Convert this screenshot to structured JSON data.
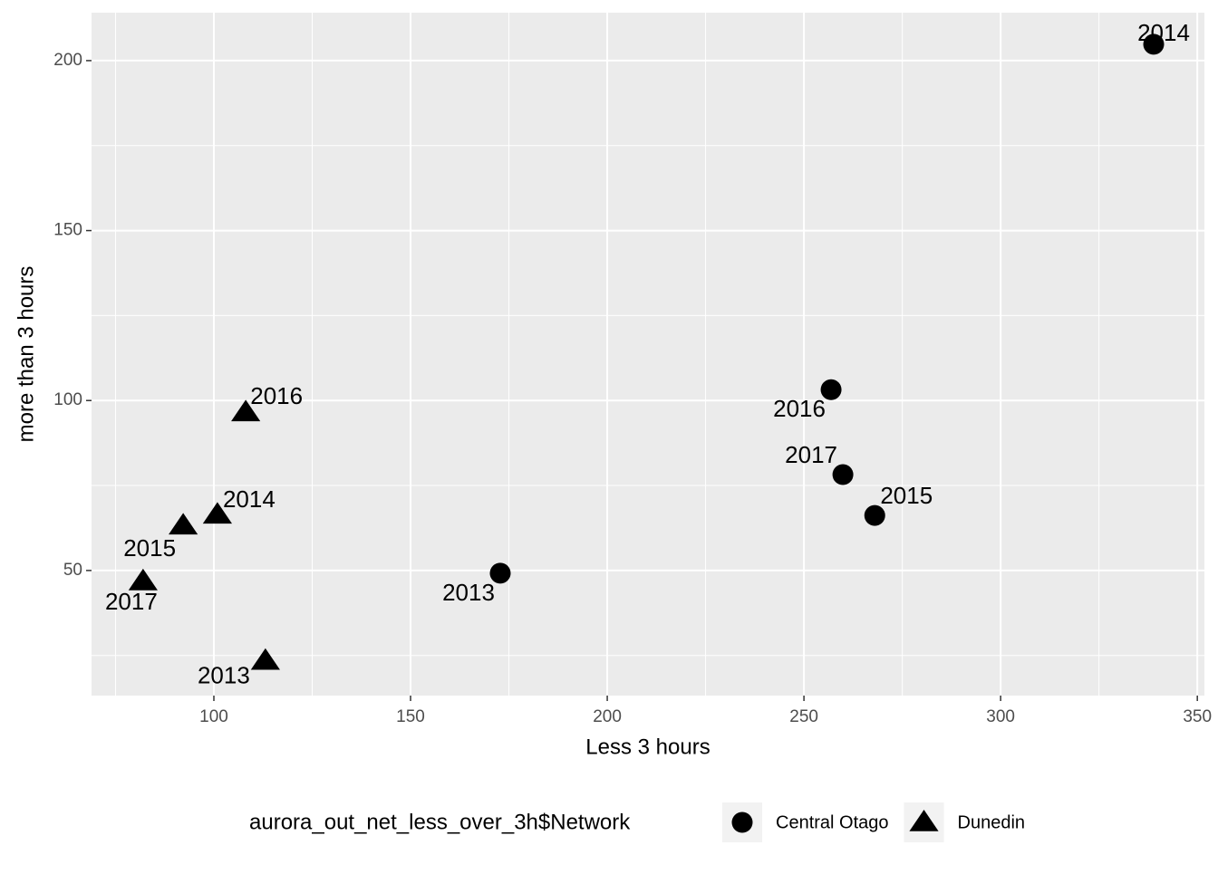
{
  "chart_data": {
    "type": "scatter",
    "x_label": "Less 3 hours",
    "y_label": "more than 3 hours",
    "legend_title": "aurora_out_net_less_over_3h$Network",
    "legend_position": "bottom",
    "grid": true,
    "xlim": [
      68.9,
      351.8
    ],
    "xticks": [
      100,
      150,
      200,
      250,
      300,
      350
    ],
    "ylim": [
      13.2,
      214.1
    ],
    "yticks": [
      50,
      100,
      150,
      200
    ],
    "series": [
      {
        "name": "Central Otago",
        "color": "#000000",
        "shape": "circle",
        "x": [
          338.9,
          256.9,
          259.9,
          268.0,
          172.8
        ],
        "values": [
          204.8,
          103.2,
          78.2,
          66.2,
          49.2
        ],
        "labels": [
          "2014",
          "2016",
          "2017",
          "2015",
          "2013"
        ]
      },
      {
        "name": "Dunedin",
        "color": "#000000",
        "shape": "triangle",
        "x": [
          108.1,
          100.9,
          92.2,
          82.0,
          113.1
        ],
        "values": [
          96.5,
          66.4,
          63.2,
          46.8,
          23.4
        ],
        "labels": [
          "2016",
          "2014",
          "2015",
          "2017",
          "2013"
        ]
      }
    ]
  }
}
